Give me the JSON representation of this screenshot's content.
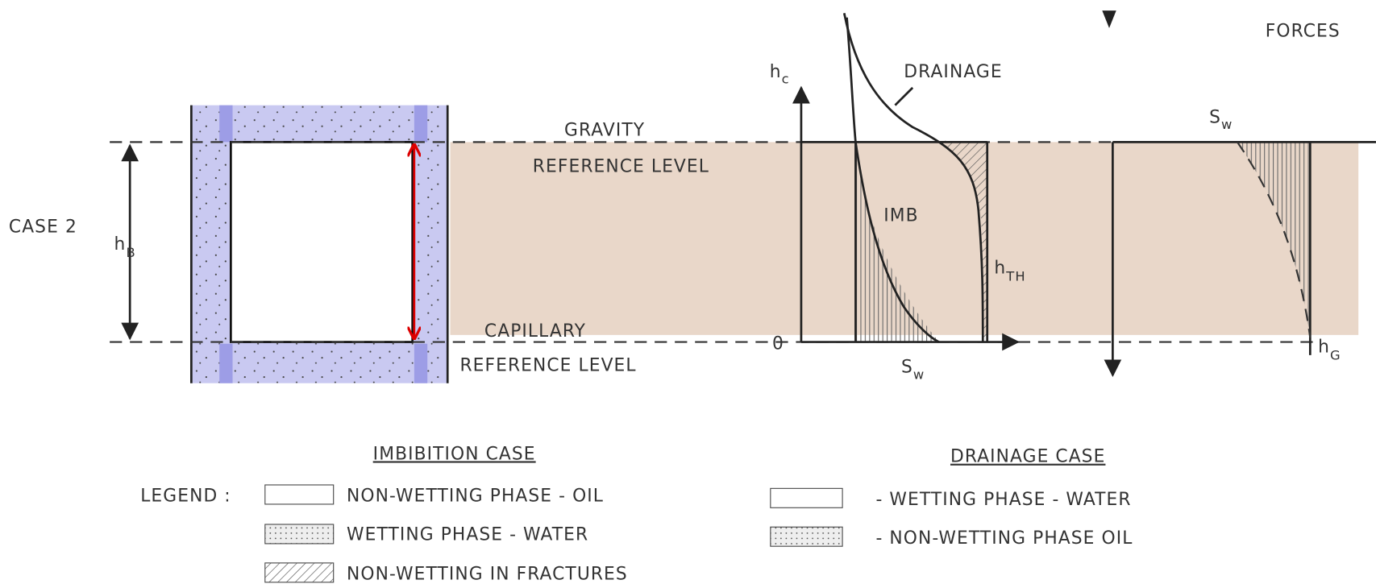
{
  "header": {
    "title": "FORCES"
  },
  "left_panel": {
    "case_label": "CASE 2",
    "height": {
      "main": "h",
      "sub": "B"
    }
  },
  "reference_levels": {
    "gravity": "GRAVITY",
    "gravity_ref": "REFERENCE LEVEL",
    "capillary": "CAPILLARY",
    "capillary_ref": "REFERENCE LEVEL"
  },
  "capillary_plot": {
    "y_axis": {
      "main": "h",
      "sub": "c"
    },
    "origin": "0",
    "x_axis": {
      "main": "S",
      "sub": "w"
    },
    "drainage": "DRAINAGE",
    "imbibition": "IMB",
    "threshold": {
      "main": "h",
      "sub": "TH"
    }
  },
  "gravity_plot": {
    "x_axis": {
      "main": "S",
      "sub": "w"
    },
    "depth": {
      "main": "h",
      "sub": "G"
    }
  },
  "legend": {
    "label": "LEGEND :",
    "imbibition": {
      "title": "IMBIBITION CASE",
      "items": [
        "NON-WETTING PHASE  - OIL",
        "WETTING PHASE - WATER",
        "NON-WETTING IN FRACTURES"
      ]
    },
    "drainage": {
      "title": "DRAINAGE CASE",
      "items": [
        "-  WETTING PHASE - WATER",
        "-  NON-WETTING PHASE  OIL"
      ]
    }
  }
}
